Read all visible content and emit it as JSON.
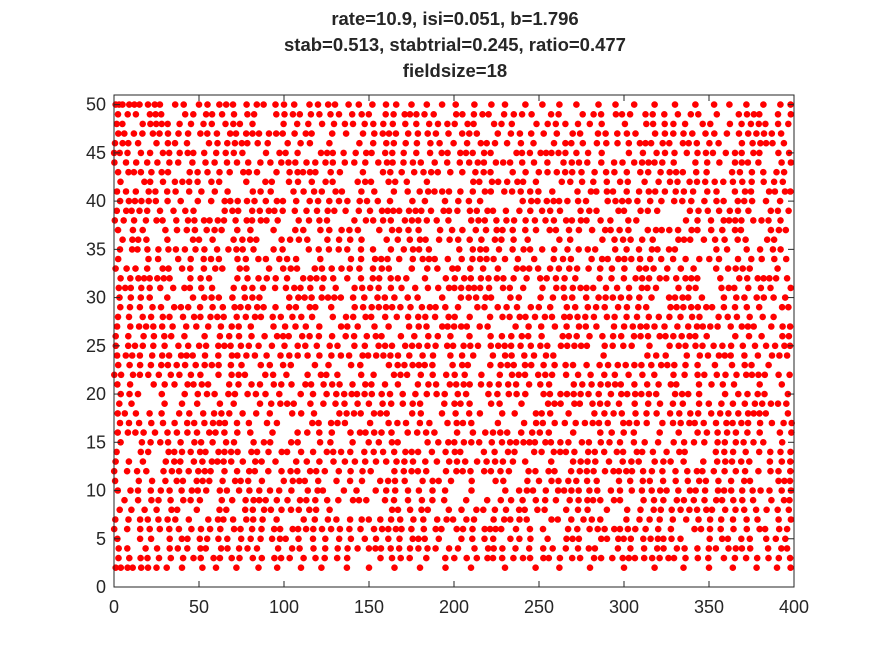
{
  "chart_data": {
    "type": "scatter",
    "title_lines": [
      "rate=10.9, isi=0.051, b=1.796",
      "stab=0.513, stabtrial=0.245, ratio=0.477",
      "fieldsize=18"
    ],
    "xlabel": "",
    "ylabel": "",
    "xlim": [
      0,
      400
    ],
    "ylim": [
      0,
      51
    ],
    "x_ticks": [
      0,
      50,
      100,
      150,
      200,
      250,
      300,
      350,
      400
    ],
    "y_ticks": [
      0,
      5,
      10,
      15,
      20,
      25,
      30,
      35,
      40,
      45,
      50
    ],
    "grid": false,
    "legend": "none",
    "marker_color": "#ff0000",
    "series": [
      {
        "description": "spike raster: one dot per spike, y = trial index 1..50, x = time bin 0..400",
        "rows": 50,
        "approx_dots_per_row": 70,
        "points": [
          [
            1,
            50
          ],
          [
            3,
            50
          ],
          [
            5,
            50
          ],
          [
            9,
            50
          ],
          [
            12,
            50
          ],
          [
            15,
            50
          ],
          [
            20,
            50
          ],
          [
            24,
            50
          ],
          [
            27,
            50
          ],
          [
            36,
            50
          ],
          [
            41,
            50
          ],
          [
            50,
            50
          ],
          [
            55,
            50
          ],
          [
            62,
            50
          ],
          [
            66,
            50
          ],
          [
            70,
            50
          ],
          [
            78,
            50
          ],
          [
            84,
            50
          ],
          [
            88,
            50
          ],
          [
            95,
            50
          ],
          [
            100,
            50
          ],
          [
            106,
            50
          ],
          [
            115,
            50
          ],
          [
            120,
            50
          ],
          [
            126,
            50
          ],
          [
            130,
            50
          ],
          [
            138,
            50
          ],
          [
            144,
            50
          ],
          [
            152,
            50
          ],
          [
            160,
            50
          ],
          [
            166,
            50
          ],
          [
            175,
            50
          ],
          [
            184,
            50
          ],
          [
            193,
            50
          ],
          [
            201,
            50
          ],
          [
            212,
            50
          ],
          [
            222,
            50
          ],
          [
            230,
            50
          ],
          [
            242,
            50
          ],
          [
            252,
            50
          ],
          [
            262,
            50
          ],
          [
            272,
            50
          ],
          [
            285,
            50
          ],
          [
            295,
            50
          ],
          [
            306,
            50
          ],
          [
            318,
            50
          ],
          [
            330,
            50
          ],
          [
            342,
            50
          ],
          [
            353,
            50
          ],
          [
            362,
            50
          ],
          [
            372,
            50
          ],
          [
            382,
            50
          ],
          [
            392,
            50
          ],
          [
            398,
            50
          ],
          [
            1,
            2
          ],
          [
            4,
            2
          ],
          [
            8,
            2
          ],
          [
            11,
            2
          ],
          [
            16,
            2
          ],
          [
            20,
            2
          ],
          [
            25,
            2
          ],
          [
            31,
            2
          ],
          [
            40,
            2
          ],
          [
            52,
            2
          ],
          [
            60,
            2
          ],
          [
            72,
            2
          ],
          [
            85,
            2
          ],
          [
            96,
            2
          ],
          [
            110,
            2
          ],
          [
            122,
            2
          ],
          [
            137,
            2
          ],
          [
            150,
            2
          ],
          [
            165,
            2
          ],
          [
            180,
            2
          ],
          [
            195,
            2
          ],
          [
            210,
            2
          ],
          [
            230,
            2
          ],
          [
            248,
            2
          ],
          [
            262,
            2
          ],
          [
            280,
            2
          ],
          [
            300,
            2
          ],
          [
            318,
            2
          ],
          [
            335,
            2
          ],
          [
            350,
            2
          ],
          [
            364,
            2
          ],
          [
            378,
            2
          ],
          [
            390,
            2
          ],
          [
            398,
            2
          ]
        ]
      }
    ]
  }
}
